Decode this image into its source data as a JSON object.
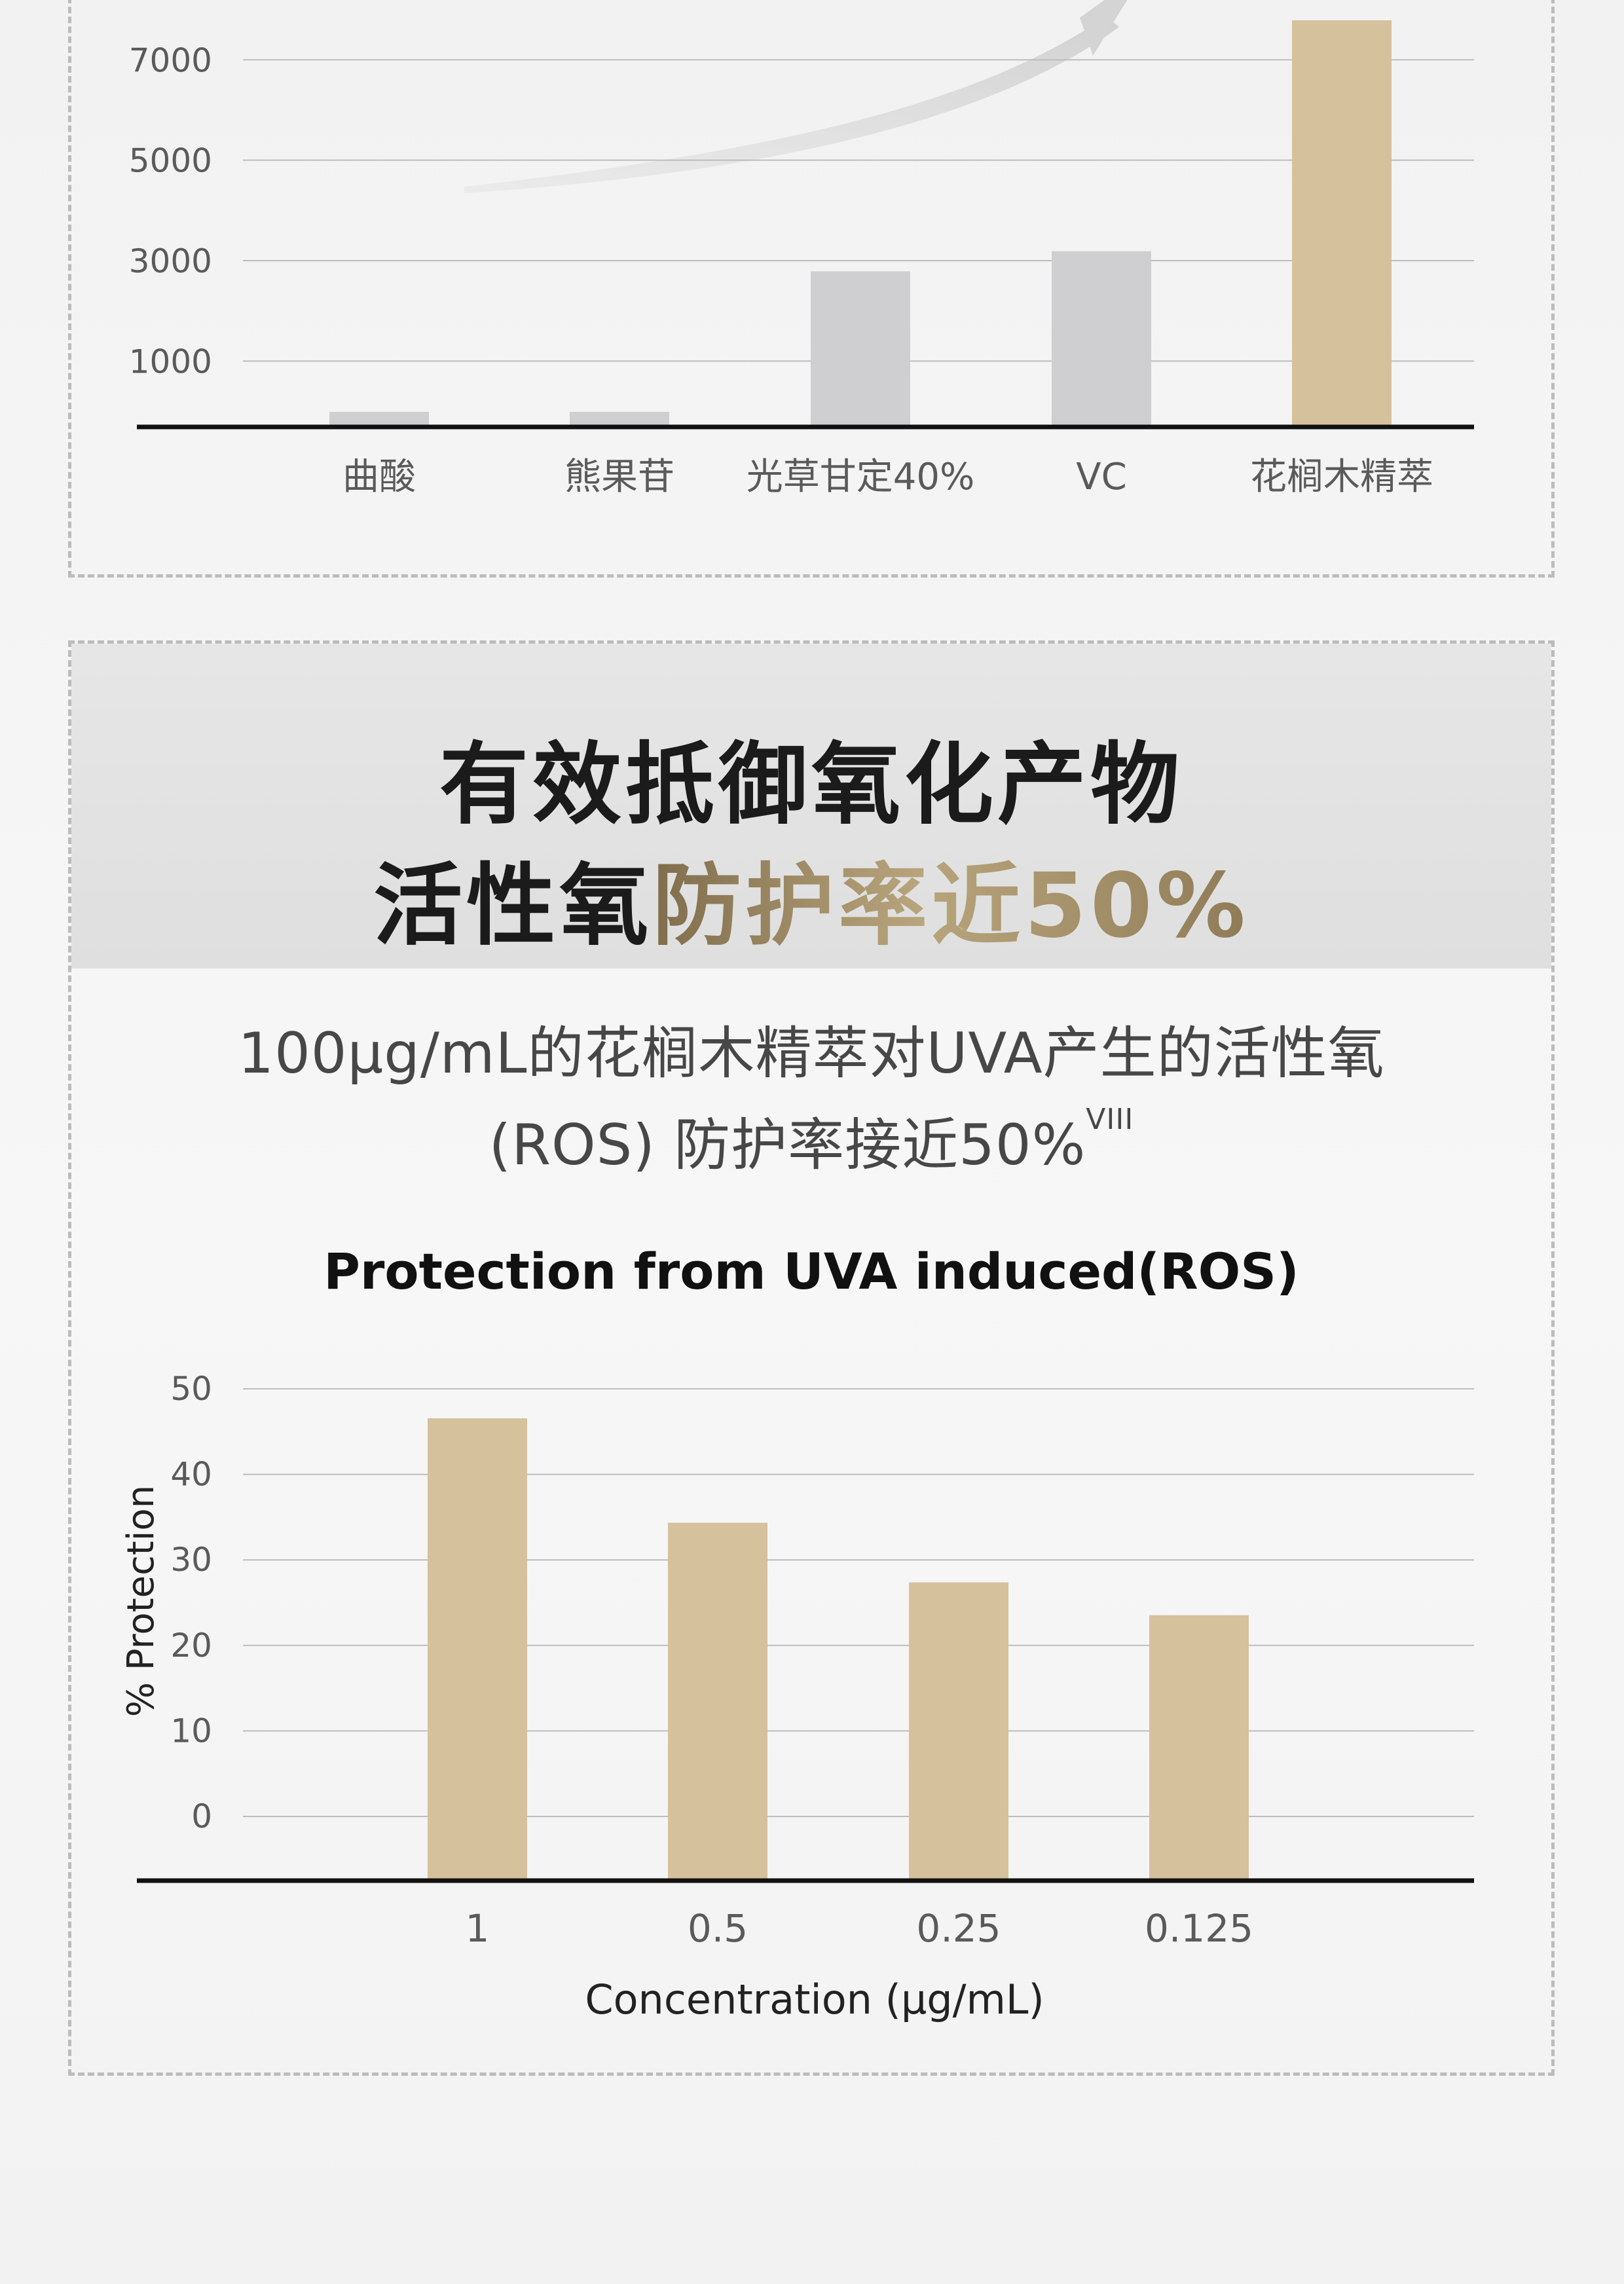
{
  "section2": {
    "heading_line1": "有效抵御氧化产物",
    "heading_line2_black": "活性氧",
    "heading_line2_gold": "防护率近50%",
    "desc_line1": "100μg/mL的花榈木精萃对UVA产生的活性氧",
    "desc_line2": "(ROS) 防护率接近50%",
    "desc_footnote": "VIII"
  },
  "colors": {
    "bar_gray": "#cfcfd1",
    "bar_gold": "#d6c19d",
    "axis": "#111111",
    "grid": "#bdbdbd",
    "tick_text": "#5a5a5a"
  },
  "chart_data": [
    {
      "type": "bar",
      "title": "",
      "categories": [
        "曲酸",
        "熊果苷",
        "光草甘定40%",
        "VC",
        "花榈木精萃"
      ],
      "values": [
        300,
        300,
        3100,
        3500,
        8100
      ],
      "highlight_index": 4,
      "yticks": [
        1000,
        3000,
        5000,
        7000
      ],
      "ylim": [
        0,
        8100
      ],
      "grid": true,
      "xlabel": "",
      "ylabel": ""
    },
    {
      "type": "bar",
      "title": "Protection from UVA induced(ROS)",
      "categories": [
        "1",
        "0.5",
        "0.25",
        "0.125"
      ],
      "values": [
        46.5,
        36,
        30,
        26.7
      ],
      "yticks": [
        0,
        10,
        20,
        30,
        40,
        50
      ],
      "ylim": [
        0,
        50
      ],
      "grid": true,
      "xlabel": "Concentration  (μg/mL)",
      "ylabel": "% Protection"
    }
  ]
}
